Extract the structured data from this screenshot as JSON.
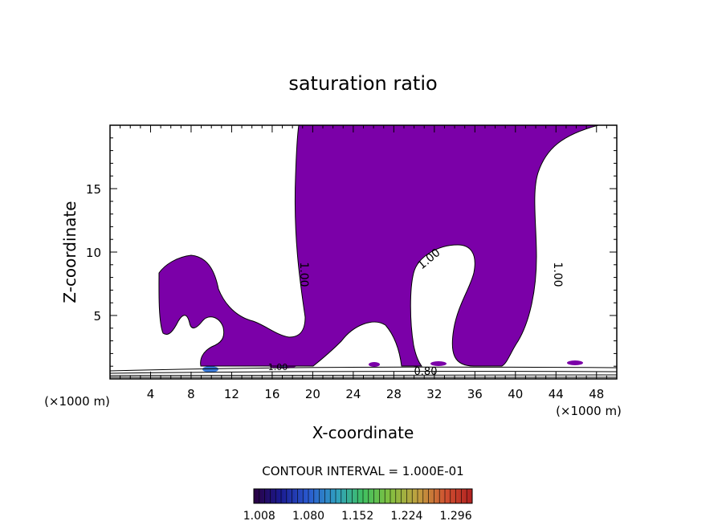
{
  "chart_data": {
    "type": "heatmap",
    "title": "saturation ratio",
    "xlabel": "X-coordinate",
    "ylabel": "Z-coordinate",
    "x_unit_label": "(×1000 m)",
    "x_unit_label_left": "(×1000 m)",
    "xlim": [
      0,
      50
    ],
    "ylim": [
      0,
      20
    ],
    "xticks": [
      "4",
      "8",
      "12",
      "16",
      "20",
      "24",
      "28",
      "32",
      "36",
      "40",
      "44",
      "48"
    ],
    "yticks": [
      "5",
      "10",
      "15"
    ],
    "contour_interval_text": "CONTOUR INTERVAL = 1.000E-01",
    "contour_labels": [
      "1.00",
      "1.00",
      "1.00",
      "1.00",
      "1.00",
      "0.80"
    ],
    "colorbar": {
      "ticks": [
        "1.008",
        "1.080",
        "1.152",
        "1.224",
        "1.296"
      ],
      "min": 1.0,
      "max": 1.32
    },
    "fill_color": "#7b00a8",
    "contour_color": "#000000"
  }
}
